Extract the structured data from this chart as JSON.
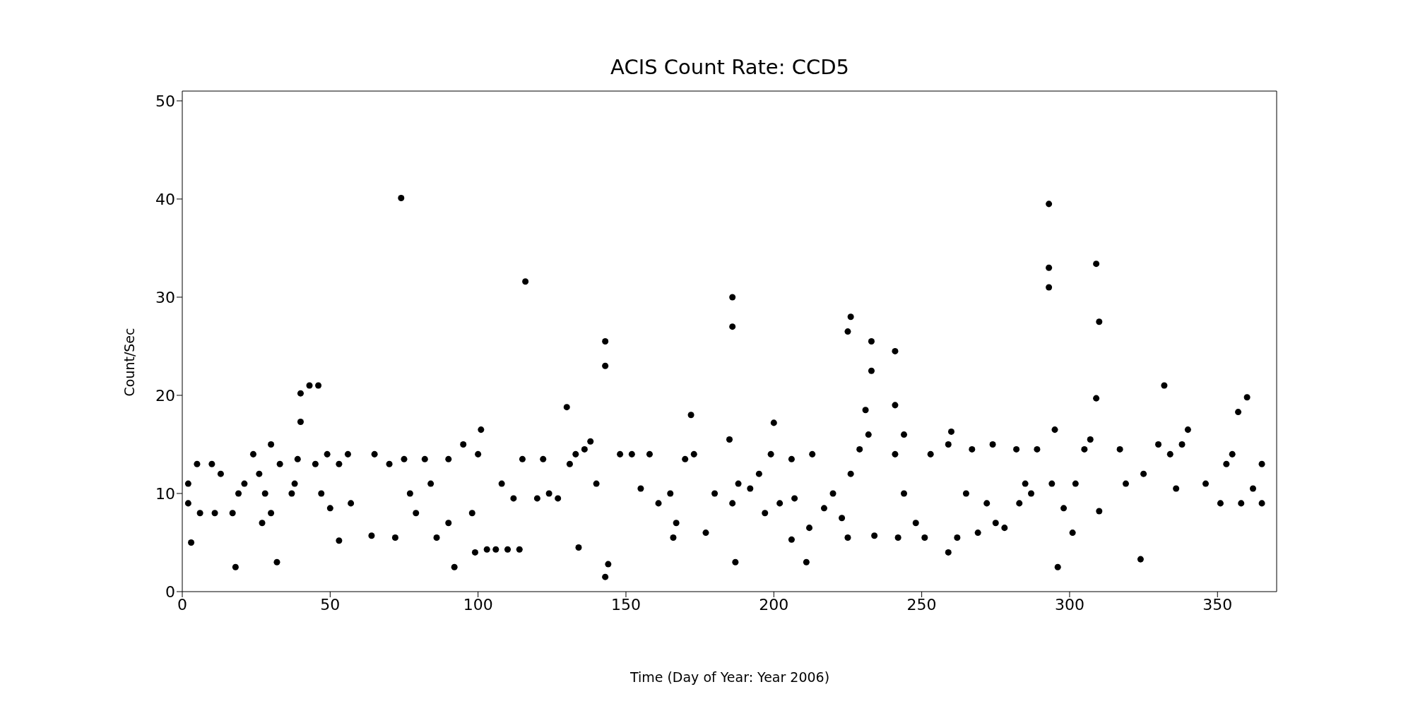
{
  "chart_data": {
    "type": "scatter",
    "title": "ACIS Count Rate: CCD5",
    "xlabel": "Time (Day of Year: Year 2006)",
    "ylabel": "Count/Sec",
    "xlim": [
      0,
      370
    ],
    "xticks": [
      0,
      50,
      100,
      150,
      200,
      250,
      300,
      350
    ],
    "ylim": [
      0,
      51
    ],
    "yticks": [
      0,
      10,
      20,
      30,
      40,
      50
    ],
    "grid": false,
    "legend": false,
    "marker": "circle",
    "series": [
      {
        "color": "#000000",
        "x": [
          2,
          2,
          3,
          5,
          6,
          10,
          11,
          13,
          17,
          18,
          19,
          21,
          24,
          26,
          27,
          28,
          30,
          30,
          32,
          33,
          37,
          38,
          39,
          40,
          40,
          43,
          45,
          46,
          47,
          49,
          50,
          53,
          53,
          56,
          57,
          64,
          65,
          70,
          72,
          74,
          75,
          77,
          79,
          82,
          84,
          86,
          90,
          90,
          92,
          95,
          98,
          99,
          100,
          101,
          103,
          106,
          108,
          110,
          112,
          114,
          115,
          116,
          120,
          122,
          124,
          127,
          130,
          131,
          133,
          134,
          136,
          138,
          140,
          143,
          143,
          143,
          144,
          148,
          152,
          155,
          158,
          161,
          165,
          166,
          167,
          170,
          172,
          173,
          177,
          180,
          185,
          186,
          186,
          186,
          187,
          188,
          192,
          195,
          197,
          199,
          200,
          202,
          206,
          206,
          207,
          211,
          212,
          213,
          217,
          220,
          223,
          225,
          225,
          226,
          226,
          229,
          231,
          232,
          233,
          233,
          234,
          241,
          241,
          241,
          242,
          244,
          244,
          248,
          251,
          253,
          259,
          259,
          260,
          262,
          265,
          267,
          269,
          272,
          274,
          275,
          278,
          282,
          283,
          285,
          287,
          289,
          293,
          293,
          293,
          294,
          295,
          296,
          298,
          301,
          302,
          305,
          307,
          309,
          310,
          309,
          310,
          317,
          319,
          324,
          325,
          330,
          332,
          334,
          336,
          338,
          340,
          346,
          351,
          353,
          355,
          357,
          358,
          360,
          362,
          365,
          365
        ],
        "values": [
          9,
          11,
          5,
          13,
          8,
          13,
          8,
          12,
          8,
          2.5,
          10,
          11,
          14,
          12,
          7,
          10,
          15,
          8,
          3,
          13,
          10,
          11,
          13.5,
          20.2,
          17.3,
          21,
          13,
          21,
          10,
          14,
          8.5,
          5.2,
          13,
          14,
          9,
          5.7,
          14,
          13,
          5.5,
          40.1,
          13.5,
          10,
          8,
          13.5,
          11,
          5.5,
          7,
          13.5,
          2.5,
          15,
          8,
          4,
          14,
          16.5,
          4.3,
          4.3,
          11,
          4.3,
          9.5,
          4.3,
          13.5,
          31.6,
          9.5,
          13.5,
          10,
          9.5,
          18.8,
          13,
          14,
          4.5,
          14.5,
          15.3,
          11,
          23,
          25.5,
          1.5,
          2.8,
          14,
          14,
          10.5,
          14,
          9,
          10,
          5.5,
          7,
          13.5,
          18,
          14,
          6,
          10,
          15.5,
          27,
          30,
          9,
          3,
          11,
          10.5,
          12,
          8,
          14,
          17.2,
          9,
          5.3,
          13.5,
          9.5,
          3,
          6.5,
          14,
          8.5,
          10,
          7.5,
          5.5,
          26.5,
          28,
          12,
          14.5,
          18.5,
          16,
          22.5,
          25.5,
          5.7,
          14,
          24.5,
          19,
          5.5,
          16,
          10,
          7,
          5.5,
          14,
          15,
          4,
          16.3,
          5.5,
          10,
          14.5,
          6,
          9,
          15,
          7,
          6.5,
          14.5,
          9,
          11,
          10,
          14.5,
          39.5,
          33,
          31,
          11,
          16.5,
          2.5,
          8.5,
          6,
          11,
          14.5,
          15.5,
          33.4,
          27.5,
          19.7,
          8.2,
          14.5,
          11,
          3.3,
          12,
          15,
          21,
          14,
          10.5,
          15,
          16.5,
          11,
          9,
          13,
          14,
          18.3,
          9,
          19.8,
          10.5,
          13,
          9
        ]
      }
    ]
  }
}
